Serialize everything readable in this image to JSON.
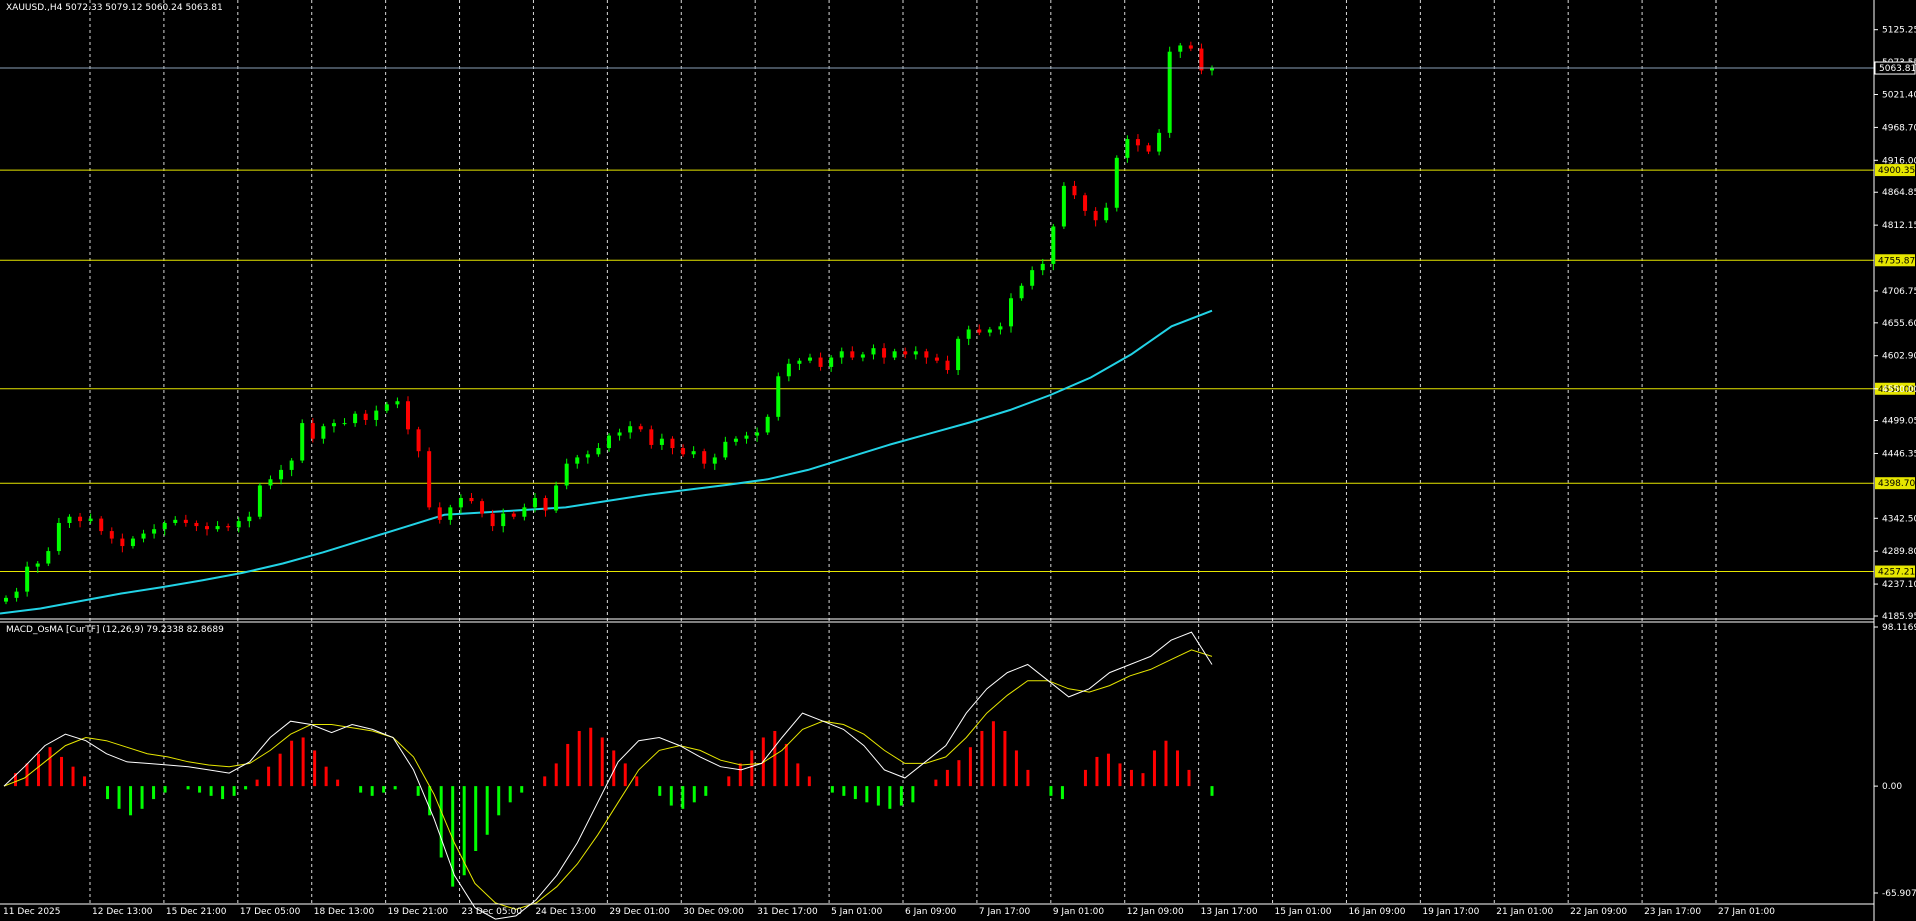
{
  "symbol_header": "XAUUSD.,H4  5072.33 5079.12 5060.24 5063.81",
  "indicator_header": "MACD_OsMA [CurTF] (12,26,9) 79.2338 82.8689",
  "colors": {
    "background": "#000000",
    "bull_candle": "#00ff00",
    "bear_candle": "#ff0000",
    "ma_line": "#22d3e6",
    "level_line": "#e6e600",
    "macd_line": "#ffffff",
    "signal_line": "#e6e600",
    "grid": "#ffffff",
    "axis_text": "#ffffff"
  },
  "chart_data": [
    {
      "type": "candlestick",
      "name": "price",
      "ylim": [
        4185.95,
        5160
      ],
      "y_ticks": [
        "5125.25",
        "5073.55",
        "5021.40",
        "4968.70",
        "4916.00",
        "4864.85",
        "4812.15",
        "4706.75",
        "4655.60",
        "4602.90",
        "4550.00",
        "4499.05",
        "4446.35",
        "4342.50",
        "4289.80",
        "4237.10",
        "4185.95"
      ],
      "current_price": "5063.81",
      "x_labels": [
        "11 Dec 2025",
        "12 Dec 13:00",
        "15 Dec 21:00",
        "17 Dec 05:00",
        "18 Dec 13:00",
        "19 Dec 21:00",
        "23 Dec 05:00",
        "24 Dec 13:00",
        "29 Dec 01:00",
        "30 Dec 09:00",
        "31 Dec 17:00",
        "5 Jan 01:00",
        "6 Jan 09:00",
        "7 Jan 17:00",
        "9 Jan 01:00",
        "12 Jan 09:00",
        "13 Jan 17:00",
        "15 Jan 01:00",
        "16 Jan 09:00",
        "19 Jan 17:00",
        "21 Jan 01:00",
        "22 Jan 09:00",
        "23 Jan 17:00",
        "27 Jan 01:00"
      ],
      "levels": [
        {
          "value": 4900.35,
          "label": "4900.35"
        },
        {
          "value": 4755.87,
          "label": "4755.87"
        },
        {
          "value": 4550.0,
          "label": "4550.00"
        },
        {
          "value": 4398.7,
          "label": "4398.70"
        },
        {
          "value": 4257.21,
          "label": "4257.21"
        }
      ],
      "close_path": [
        4215,
        4225,
        4265,
        4270,
        4290,
        4335,
        4345,
        4338,
        4342,
        4322,
        4310,
        4298,
        4310,
        4318,
        4325,
        4335,
        4340,
        4335,
        4330,
        4325,
        4330,
        4328,
        4338,
        4345,
        4395,
        4405,
        4420,
        4435,
        4495,
        4470,
        4490,
        4495,
        4495,
        4510,
        4500,
        4515,
        4525,
        4530,
        4485,
        4450,
        4360,
        4340,
        4360,
        4375,
        4370,
        4350,
        4330,
        4350,
        4345,
        4360,
        4375,
        4355,
        4395,
        4430,
        4440,
        4445,
        4455,
        4475,
        4480,
        4490,
        4485,
        4460,
        4470,
        4455,
        4445,
        4450,
        4430,
        4440,
        4465,
        4470,
        4475,
        4480,
        4505,
        4570,
        4590,
        4595,
        4600,
        4585,
        4600,
        4610,
        4600,
        4605,
        4615,
        4600,
        4610,
        4605,
        4610,
        4600,
        4595,
        4580,
        4630,
        4645,
        4640,
        4645,
        4650,
        4695,
        4715,
        4740,
        4750,
        4810,
        4875,
        4860,
        4835,
        4820,
        4840,
        4920,
        4950,
        4940,
        4930,
        4960,
        5090,
        5100,
        5095,
        5060,
        5063.81
      ],
      "ma_points": [
        4190,
        4198,
        4210,
        4222,
        4232,
        4243,
        4255,
        4270,
        4288,
        4308,
        4328,
        4348,
        4352,
        4356,
        4360,
        4370,
        4380,
        4388,
        4396,
        4405,
        4420,
        4440,
        4460,
        4478,
        4496,
        4516,
        4540,
        4568,
        4605,
        4650,
        4675
      ],
      "ma_x_range": [
        0,
        1212
      ]
    },
    {
      "type": "macd_histogram",
      "name": "MACD_OsMA",
      "ylim": [
        -65.907,
        98.1169
      ],
      "y_ticks": [
        "98.1169",
        "0.00",
        "-65.9070"
      ],
      "macd_value": 79.2338,
      "signal_value": 82.8689,
      "hist_path": [
        0,
        8,
        14,
        20,
        24,
        18,
        12,
        6,
        0,
        -8,
        -14,
        -18,
        -14,
        -8,
        -4,
        0,
        -2,
        -4,
        -6,
        -8,
        -6,
        -2,
        4,
        12,
        20,
        28,
        30,
        22,
        12,
        4,
        0,
        -4,
        -6,
        -4,
        -2,
        0,
        -6,
        -18,
        -44,
        -62,
        -55,
        -40,
        -30,
        -18,
        -10,
        -4,
        0,
        6,
        14,
        26,
        34,
        36,
        30,
        22,
        14,
        6,
        0,
        -6,
        -12,
        -14,
        -10,
        -6,
        0,
        6,
        14,
        22,
        30,
        34,
        26,
        14,
        6,
        0,
        -4,
        -6,
        -8,
        -10,
        -12,
        -14,
        -12,
        -10,
        0,
        4,
        10,
        16,
        24,
        34,
        40,
        34,
        22,
        10,
        0,
        -6,
        -8,
        0,
        10,
        18,
        20,
        14,
        10,
        8,
        22,
        28,
        22,
        10,
        0,
        -6
      ],
      "macd_path": [
        0,
        12,
        25,
        32,
        28,
        20,
        15,
        14,
        13,
        12,
        10,
        8,
        15,
        30,
        40,
        38,
        33,
        38,
        35,
        30,
        10,
        -20,
        -55,
        -75,
        -82,
        -80,
        -70,
        -55,
        -35,
        -10,
        15,
        28,
        30,
        25,
        18,
        12,
        10,
        14,
        30,
        45,
        40,
        35,
        25,
        10,
        5,
        15,
        25,
        45,
        60,
        70,
        75,
        65,
        55,
        60,
        70,
        75,
        80,
        90,
        95,
        75
      ],
      "signal_path": [
        0,
        5,
        15,
        25,
        30,
        28,
        24,
        20,
        18,
        15,
        13,
        12,
        14,
        22,
        32,
        38,
        38,
        36,
        34,
        30,
        18,
        -5,
        -35,
        -60,
        -72,
        -76,
        -72,
        -62,
        -48,
        -30,
        -10,
        10,
        22,
        25,
        22,
        16,
        13,
        14,
        22,
        35,
        40,
        38,
        32,
        22,
        14,
        14,
        18,
        30,
        45,
        56,
        65,
        65,
        60,
        58,
        62,
        68,
        72,
        78,
        84,
        80
      ]
    }
  ]
}
